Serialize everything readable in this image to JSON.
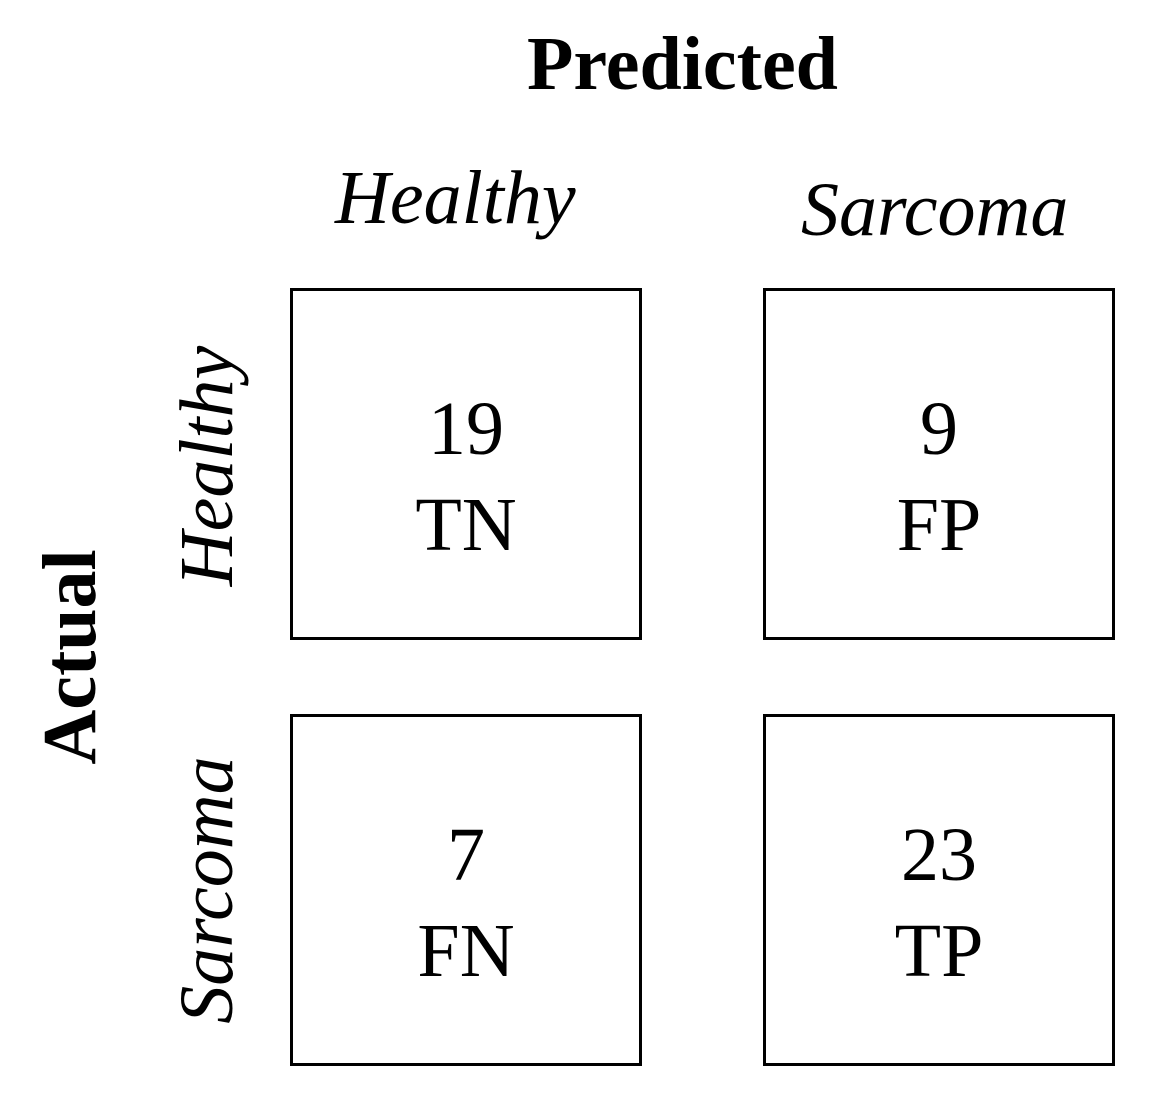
{
  "axes": {
    "predicted_title": "Predicted",
    "actual_title": "Actual"
  },
  "columns": [
    "Healthy",
    "Sarcoma"
  ],
  "rows": [
    "Healthy",
    "Sarcoma"
  ],
  "cells": {
    "tn": {
      "value": "19",
      "label": "TN"
    },
    "fp": {
      "value": "9",
      "label": "FP"
    },
    "fn": {
      "value": "7",
      "label": "FN"
    },
    "tp": {
      "value": "23",
      "label": "TP"
    }
  }
}
